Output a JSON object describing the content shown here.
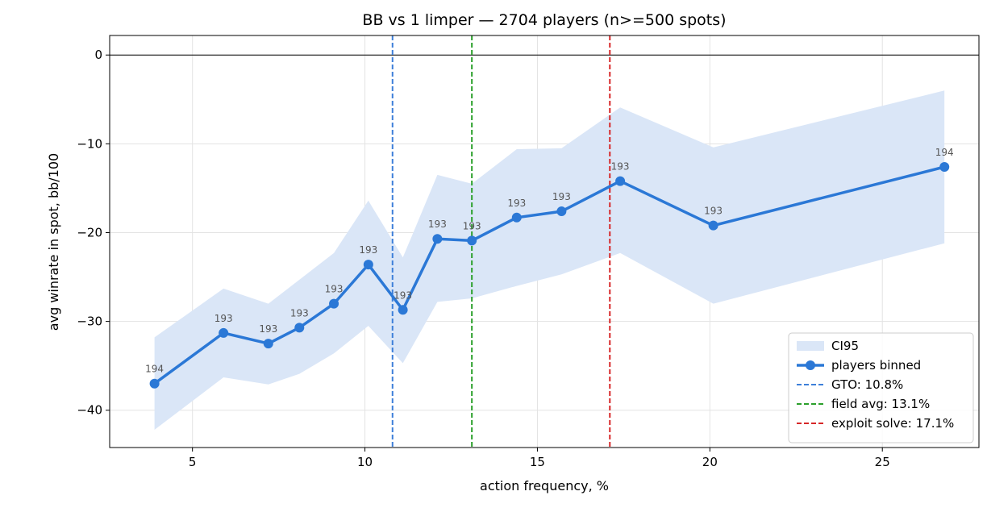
{
  "chart_data": {
    "type": "line",
    "title": "BB vs 1 limper — 2704 players (n>=500 spots)",
    "xlabel": "action frequency, %",
    "ylabel": "avg winrate in spot, bb/100",
    "xlim": [
      2.6,
      27.8
    ],
    "ylim": [
      -44.2,
      2.2
    ],
    "xticks": [
      5,
      10,
      15,
      20,
      25
    ],
    "yticks": [
      0,
      -10,
      -20,
      -30,
      -40
    ],
    "grid": true,
    "legend_position": "lower-right",
    "zero_line": 0,
    "series": [
      {
        "name": "players binned",
        "color": "#2b78d6",
        "x": [
          3.9,
          5.9,
          7.2,
          8.1,
          9.1,
          10.1,
          11.1,
          12.1,
          13.1,
          14.4,
          15.7,
          17.4,
          20.1,
          26.8
        ],
        "y": [
          -37.0,
          -31.3,
          -32.5,
          -30.7,
          -28.0,
          -23.6,
          -28.7,
          -20.7,
          -20.9,
          -18.3,
          -17.6,
          -14.2,
          -19.2,
          -12.6
        ],
        "counts": [
          "194",
          "193",
          "193",
          "193",
          "193",
          "193",
          "193",
          "193",
          "193",
          "193",
          "193",
          "193",
          "193",
          "194"
        ]
      }
    ],
    "band": {
      "name": "CI95",
      "color": "#dae6f7",
      "x": [
        3.9,
        5.9,
        7.2,
        8.1,
        9.1,
        10.1,
        11.1,
        12.1,
        13.1,
        14.4,
        15.7,
        17.4,
        20.1,
        26.8
      ],
      "upper": [
        -31.8,
        -26.3,
        -28.0,
        -25.3,
        -22.3,
        -16.4,
        -22.8,
        -13.5,
        -14.5,
        -10.6,
        -10.5,
        -5.9,
        -10.4,
        -4.0
      ],
      "lower": [
        -42.2,
        -36.3,
        -37.1,
        -35.9,
        -33.6,
        -30.5,
        -34.7,
        -27.8,
        -27.4,
        -26.0,
        -24.7,
        -22.3,
        -28.0,
        -21.2
      ]
    },
    "reference_lines": [
      {
        "name": "GTO: 10.8%",
        "x": 10.8,
        "color": "#3d7fd9"
      },
      {
        "name": "field avg: 13.1%",
        "x": 13.1,
        "color": "#2ca02c"
      },
      {
        "name": "exploit solve: 17.1%",
        "x": 17.1,
        "color": "#d62728"
      }
    ]
  }
}
